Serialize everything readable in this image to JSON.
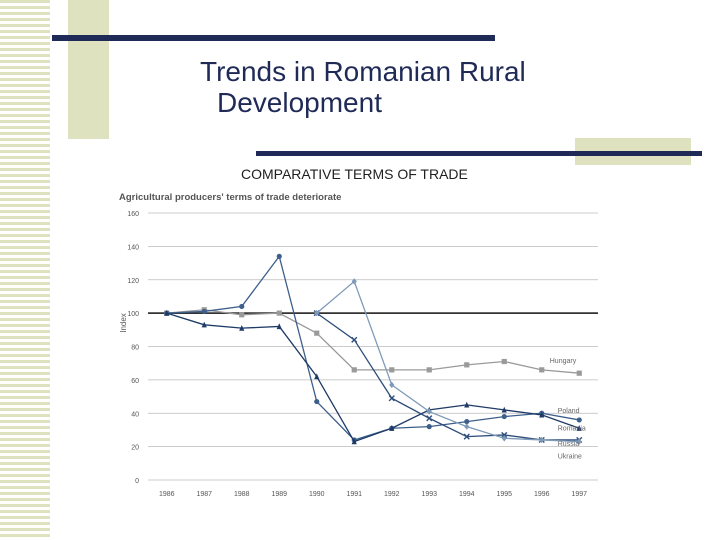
{
  "slide": {
    "title_line1": "Trends in Romanian Rural",
    "title_line2": "Development",
    "subtitle": "COMPARATIVE TERMS OF TRADE"
  },
  "colors": {
    "title": "#1f2a56",
    "accent_bar": "#1f2a56",
    "stripe": "#dfe2bf",
    "series_dark": "#1e3a66",
    "series_mid": "#3c5f8c",
    "series_light": "#7e9ab8",
    "series_grey": "#9a9a9a"
  },
  "chart_data": {
    "type": "line",
    "title": "Agricultural producers' terms of trade deteriorate",
    "ylabel": "Index",
    "xlabel": "",
    "ylim": [
      0,
      160
    ],
    "yticks": [
      0,
      20,
      40,
      60,
      80,
      100,
      120,
      140,
      160
    ],
    "x": [
      "1986",
      "1987",
      "1988",
      "1989",
      "1990",
      "1991",
      "1992",
      "1993",
      "1994",
      "1995",
      "1996",
      "1997"
    ],
    "grid": true,
    "reference_line": 100,
    "series": [
      {
        "name": "Hungary",
        "marker": "square",
        "color": "#9a9a9a",
        "values": [
          100,
          102,
          99,
          100,
          88,
          66,
          66,
          66,
          69,
          71,
          66,
          64
        ]
      },
      {
        "name": "Poland",
        "marker": "circle",
        "color": "#3c5f8c",
        "values": [
          100,
          101,
          104,
          134,
          47,
          24,
          31,
          32,
          35,
          38,
          40,
          36
        ]
      },
      {
        "name": "Romania",
        "marker": "triangle",
        "color": "#1e3a66",
        "values": [
          100,
          93,
          91,
          92,
          62,
          23,
          31,
          42,
          45,
          42,
          39,
          31
        ]
      },
      {
        "name": "Russia",
        "marker": "x",
        "color": "#2d4d7a",
        "values": [
          null,
          null,
          null,
          null,
          100,
          84,
          49,
          37,
          26,
          27,
          24,
          24
        ]
      },
      {
        "name": "Ukraine",
        "marker": "diamond",
        "color": "#7e9ab8",
        "values": [
          null,
          null,
          null,
          null,
          100,
          119,
          57,
          41,
          32,
          25,
          24,
          23
        ]
      }
    ]
  }
}
